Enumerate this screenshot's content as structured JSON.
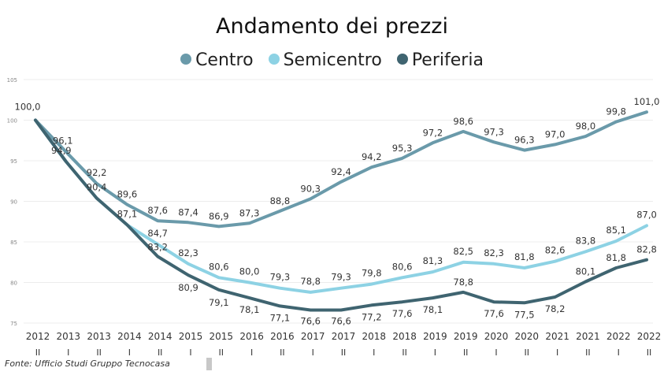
{
  "chart_data": {
    "type": "line",
    "title": "Andamento dei prezzi",
    "ylim": [
      75,
      105
    ],
    "yticks": [
      75,
      80,
      85,
      90,
      95,
      100,
      105
    ],
    "grid": true,
    "legend_position": "top",
    "categories": [
      {
        "year": "2012",
        "sem": "II"
      },
      {
        "year": "2013",
        "sem": "I"
      },
      {
        "year": "2013",
        "sem": "II"
      },
      {
        "year": "2014",
        "sem": "I"
      },
      {
        "year": "2014",
        "sem": "II"
      },
      {
        "year": "2015",
        "sem": "I"
      },
      {
        "year": "2015",
        "sem": "II"
      },
      {
        "year": "2016",
        "sem": "I"
      },
      {
        "year": "2016",
        "sem": "II"
      },
      {
        "year": "2017",
        "sem": "I"
      },
      {
        "year": "2017",
        "sem": "II"
      },
      {
        "year": "2018",
        "sem": "I"
      },
      {
        "year": "2018",
        "sem": "II"
      },
      {
        "year": "2019",
        "sem": "I"
      },
      {
        "year": "2019",
        "sem": "II"
      },
      {
        "year": "2020",
        "sem": "I"
      },
      {
        "year": "2020",
        "sem": "II"
      },
      {
        "year": "2021",
        "sem": "I"
      },
      {
        "year": "2021",
        "sem": "II"
      },
      {
        "year": "2022",
        "sem": "I"
      },
      {
        "year": "2022",
        "sem": "II"
      }
    ],
    "series": [
      {
        "name": "Centro",
        "color": "#6a9aaa",
        "values": [
          100.0,
          96.1,
          92.2,
          89.6,
          87.6,
          87.4,
          86.9,
          87.3,
          88.8,
          90.3,
          92.4,
          94.2,
          95.3,
          97.2,
          98.6,
          97.3,
          96.3,
          97.0,
          98.0,
          99.8,
          101.0
        ],
        "labels": [
          "100,0",
          "96,1",
          "92,2",
          "89,6",
          "87,6",
          "87,4",
          "86,9",
          "87,3",
          "88,8",
          "90,3",
          "92,4",
          "94,2",
          "95,3",
          "97,2",
          "98,6",
          "97,3",
          "96,3",
          "97,0",
          "98,0",
          "99,8",
          "101,0"
        ]
      },
      {
        "name": "Semicentro",
        "color": "#8dd2e4",
        "values": [
          100.0,
          94.9,
          90.4,
          87.1,
          84.7,
          82.3,
          80.6,
          80.0,
          79.3,
          78.8,
          79.3,
          79.8,
          80.6,
          81.3,
          82.5,
          82.3,
          81.8,
          82.6,
          83.8,
          85.1,
          87.0
        ],
        "labels": [
          "",
          "94,9",
          "90,4",
          "87,1",
          "84,7",
          "82,3",
          "80,6",
          "80,0",
          "79,3",
          "78,8",
          "79,3",
          "79,8",
          "80,6",
          "81,3",
          "82,5",
          "82,3",
          "81,8",
          "82,6",
          "83,8",
          "85,1",
          "87,0"
        ]
      },
      {
        "name": "Periferia",
        "color": "#3f6470",
        "values": [
          100.0,
          94.9,
          90.4,
          87.1,
          83.2,
          80.9,
          79.1,
          78.1,
          77.1,
          76.6,
          76.6,
          77.2,
          77.6,
          78.1,
          78.8,
          77.6,
          77.5,
          78.2,
          80.1,
          81.8,
          82.8
        ],
        "labels": [
          "",
          "",
          "",
          "",
          "83,2",
          "80,9",
          "79,1",
          "78,1",
          "77,1",
          "76,6",
          "76,6",
          "77,2",
          "77,6",
          "78,1",
          "78,8",
          "77,6",
          "77,5",
          "78,2",
          "80,1",
          "81,8",
          "82,8"
        ]
      }
    ]
  },
  "source": "Fonte: Ufficio Studi Gruppo Tecnocasa"
}
